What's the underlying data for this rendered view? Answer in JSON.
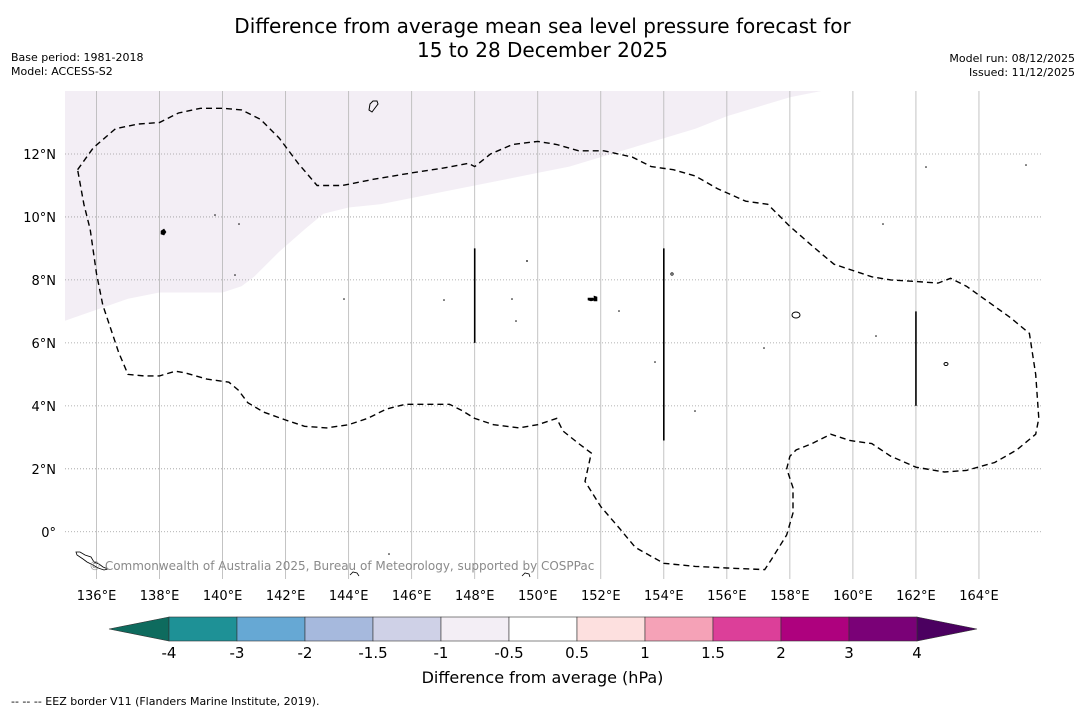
{
  "title": {
    "line1": "Difference from average mean sea level pressure forecast for",
    "line2": "15 to 28 December 2025"
  },
  "meta_left": {
    "base_period": "Base period: 1981-2018",
    "model": "Model: ACCESS-S2"
  },
  "meta_right": {
    "model_run": "Model run: 08/12/2025",
    "issued": "Issued: 11/12/2025"
  },
  "map": {
    "lon_range": [
      135,
      166
    ],
    "lat_range": [
      -1.5,
      14
    ],
    "lon_ticks": [
      136,
      138,
      140,
      142,
      144,
      146,
      148,
      150,
      152,
      154,
      156,
      158,
      160,
      162,
      164
    ],
    "lon_tick_labels": [
      "136°E",
      "138°E",
      "140°E",
      "142°E",
      "144°E",
      "146°E",
      "148°E",
      "150°E",
      "152°E",
      "154°E",
      "156°E",
      "158°E",
      "160°E",
      "162°E",
      "164°E"
    ],
    "lat_ticks": [
      0,
      2,
      4,
      6,
      8,
      10,
      12
    ],
    "lat_tick_labels": [
      "0°",
      "2°N",
      "4°N",
      "6°N",
      "8°N",
      "10°N",
      "12°N"
    ],
    "anomaly_region": {
      "category": "-1 to -0.5",
      "color": "#f3eef5",
      "boundary": [
        [
          135,
          6.7
        ],
        [
          137,
          7.4
        ],
        [
          138,
          7.6
        ],
        [
          139,
          7.6
        ],
        [
          140,
          7.6
        ],
        [
          140.6,
          7.8
        ],
        [
          141,
          8.1
        ],
        [
          141.8,
          8.9
        ],
        [
          142.6,
          9.6
        ],
        [
          143.2,
          10.1
        ],
        [
          144,
          10.3
        ],
        [
          145,
          10.4
        ],
        [
          146,
          10.6
        ],
        [
          147,
          10.8
        ],
        [
          148,
          11.0
        ],
        [
          149,
          11.2
        ],
        [
          150,
          11.4
        ],
        [
          151,
          11.6
        ],
        [
          152,
          11.9
        ],
        [
          153,
          12.2
        ],
        [
          154,
          12.5
        ],
        [
          155,
          12.8
        ],
        [
          156,
          13.2
        ],
        [
          157,
          13.5
        ],
        [
          158,
          13.8
        ],
        [
          159,
          14.0
        ],
        [
          135,
          14.0
        ]
      ]
    },
    "eez_border": [
      [
        135.4,
        11.5
      ],
      [
        135.9,
        12.2
      ],
      [
        136.6,
        12.8
      ],
      [
        137.3,
        12.95
      ],
      [
        138.0,
        13.0
      ],
      [
        138.6,
        13.3
      ],
      [
        139.3,
        13.45
      ],
      [
        140.0,
        13.45
      ],
      [
        140.6,
        13.4
      ],
      [
        141.2,
        13.1
      ],
      [
        141.8,
        12.5
      ],
      [
        142.4,
        11.7
      ],
      [
        143.0,
        11.0
      ],
      [
        143.8,
        11.0
      ],
      [
        144.8,
        11.2
      ],
      [
        146.0,
        11.4
      ],
      [
        147.0,
        11.55
      ],
      [
        147.8,
        11.7
      ],
      [
        148.0,
        11.6
      ],
      [
        148.5,
        12.0
      ],
      [
        149.2,
        12.3
      ],
      [
        150.0,
        12.4
      ],
      [
        150.6,
        12.3
      ],
      [
        151.3,
        12.1
      ],
      [
        152.1,
        12.1
      ],
      [
        153.0,
        11.9
      ],
      [
        153.6,
        11.6
      ],
      [
        154.3,
        11.5
      ],
      [
        155.0,
        11.3
      ],
      [
        155.7,
        10.9
      ],
      [
        156.6,
        10.5
      ],
      [
        157.3,
        10.4
      ],
      [
        158.0,
        9.7
      ],
      [
        158.8,
        9.0
      ],
      [
        159.4,
        8.5
      ],
      [
        160.0,
        8.3
      ],
      [
        160.6,
        8.1
      ],
      [
        161.2,
        8.0
      ],
      [
        162.0,
        7.95
      ],
      [
        162.7,
        7.9
      ],
      [
        163.1,
        8.05
      ],
      [
        163.6,
        7.8
      ],
      [
        164.3,
        7.3
      ],
      [
        165.0,
        6.8
      ],
      [
        165.6,
        6.3
      ],
      [
        165.8,
        5.0
      ],
      [
        165.9,
        3.6
      ],
      [
        165.8,
        3.1
      ],
      [
        165.2,
        2.6
      ],
      [
        164.5,
        2.2
      ],
      [
        163.6,
        1.95
      ],
      [
        162.9,
        1.9
      ],
      [
        162.0,
        2.05
      ],
      [
        161.2,
        2.4
      ],
      [
        160.6,
        2.8
      ],
      [
        159.9,
        2.9
      ],
      [
        159.3,
        3.1
      ],
      [
        158.7,
        2.8
      ],
      [
        158.2,
        2.6
      ],
      [
        158.0,
        2.4
      ],
      [
        157.9,
        2.0
      ],
      [
        158.1,
        1.4
      ],
      [
        158.1,
        0.6
      ],
      [
        157.9,
        -0.1
      ],
      [
        157.4,
        -0.9
      ],
      [
        157.2,
        -1.2
      ],
      [
        156.0,
        -1.15
      ],
      [
        155.0,
        -1.1
      ],
      [
        154.0,
        -1.0
      ],
      [
        153.1,
        -0.5
      ],
      [
        152.6,
        0.1
      ],
      [
        152.0,
        0.8
      ],
      [
        151.5,
        1.6
      ],
      [
        151.7,
        2.5
      ],
      [
        151.3,
        2.8
      ],
      [
        150.8,
        3.2
      ],
      [
        150.6,
        3.6
      ],
      [
        150.0,
        3.4
      ],
      [
        149.4,
        3.3
      ],
      [
        148.6,
        3.4
      ],
      [
        148.0,
        3.6
      ],
      [
        147.6,
        3.85
      ],
      [
        147.2,
        4.05
      ],
      [
        146.5,
        4.05
      ],
      [
        145.8,
        4.05
      ],
      [
        145.2,
        3.9
      ],
      [
        144.6,
        3.6
      ],
      [
        144.0,
        3.4
      ],
      [
        143.3,
        3.3
      ],
      [
        142.6,
        3.35
      ],
      [
        142.0,
        3.55
      ],
      [
        141.3,
        3.8
      ],
      [
        140.8,
        4.1
      ],
      [
        140.5,
        4.5
      ],
      [
        140.2,
        4.75
      ],
      [
        139.5,
        4.85
      ],
      [
        138.8,
        5.05
      ],
      [
        138.5,
        5.1
      ],
      [
        138.0,
        4.95
      ],
      [
        137.5,
        4.95
      ],
      [
        137.0,
        5.0
      ],
      [
        136.7,
        5.7
      ],
      [
        136.5,
        6.3
      ],
      [
        136.2,
        7.2
      ],
      [
        136.0,
        8.2
      ],
      [
        135.8,
        9.6
      ],
      [
        135.6,
        10.4
      ],
      [
        135.4,
        11.5
      ]
    ],
    "solid_lines": [
      {
        "lon": 148,
        "lat_from": 6.0,
        "lat_to": 9.0
      },
      {
        "lon": 154,
        "lat_from": 2.9,
        "lat_to": 9.0
      },
      {
        "lon": 162,
        "lat_from": 4.0,
        "lat_to": 7.0
      }
    ],
    "copyright": "© Commonwealth of Australia 2025, Bureau of Meteorology, supported by COSPPac"
  },
  "colorbar": {
    "tick_labels": [
      "-4",
      "-3",
      "-2",
      "-1.5",
      "-1",
      "-0.5",
      "0.5",
      "1",
      "1.5",
      "2",
      "3",
      "4"
    ],
    "colors": [
      "#1e9196",
      "#66a8d4",
      "#a6b9dd",
      "#cfd1e7",
      "#f3eef5",
      "#ffffff",
      "#fde0df",
      "#f5a2b7",
      "#dc3f99",
      "#ae017e",
      "#7a0177"
    ],
    "under_color": "#0e6b5e",
    "over_color": "#4b0060",
    "label": "Difference from average (hPa)"
  },
  "footer": "--  --  -- EEZ border V11 (Flanders Marine Institute, 2019)."
}
